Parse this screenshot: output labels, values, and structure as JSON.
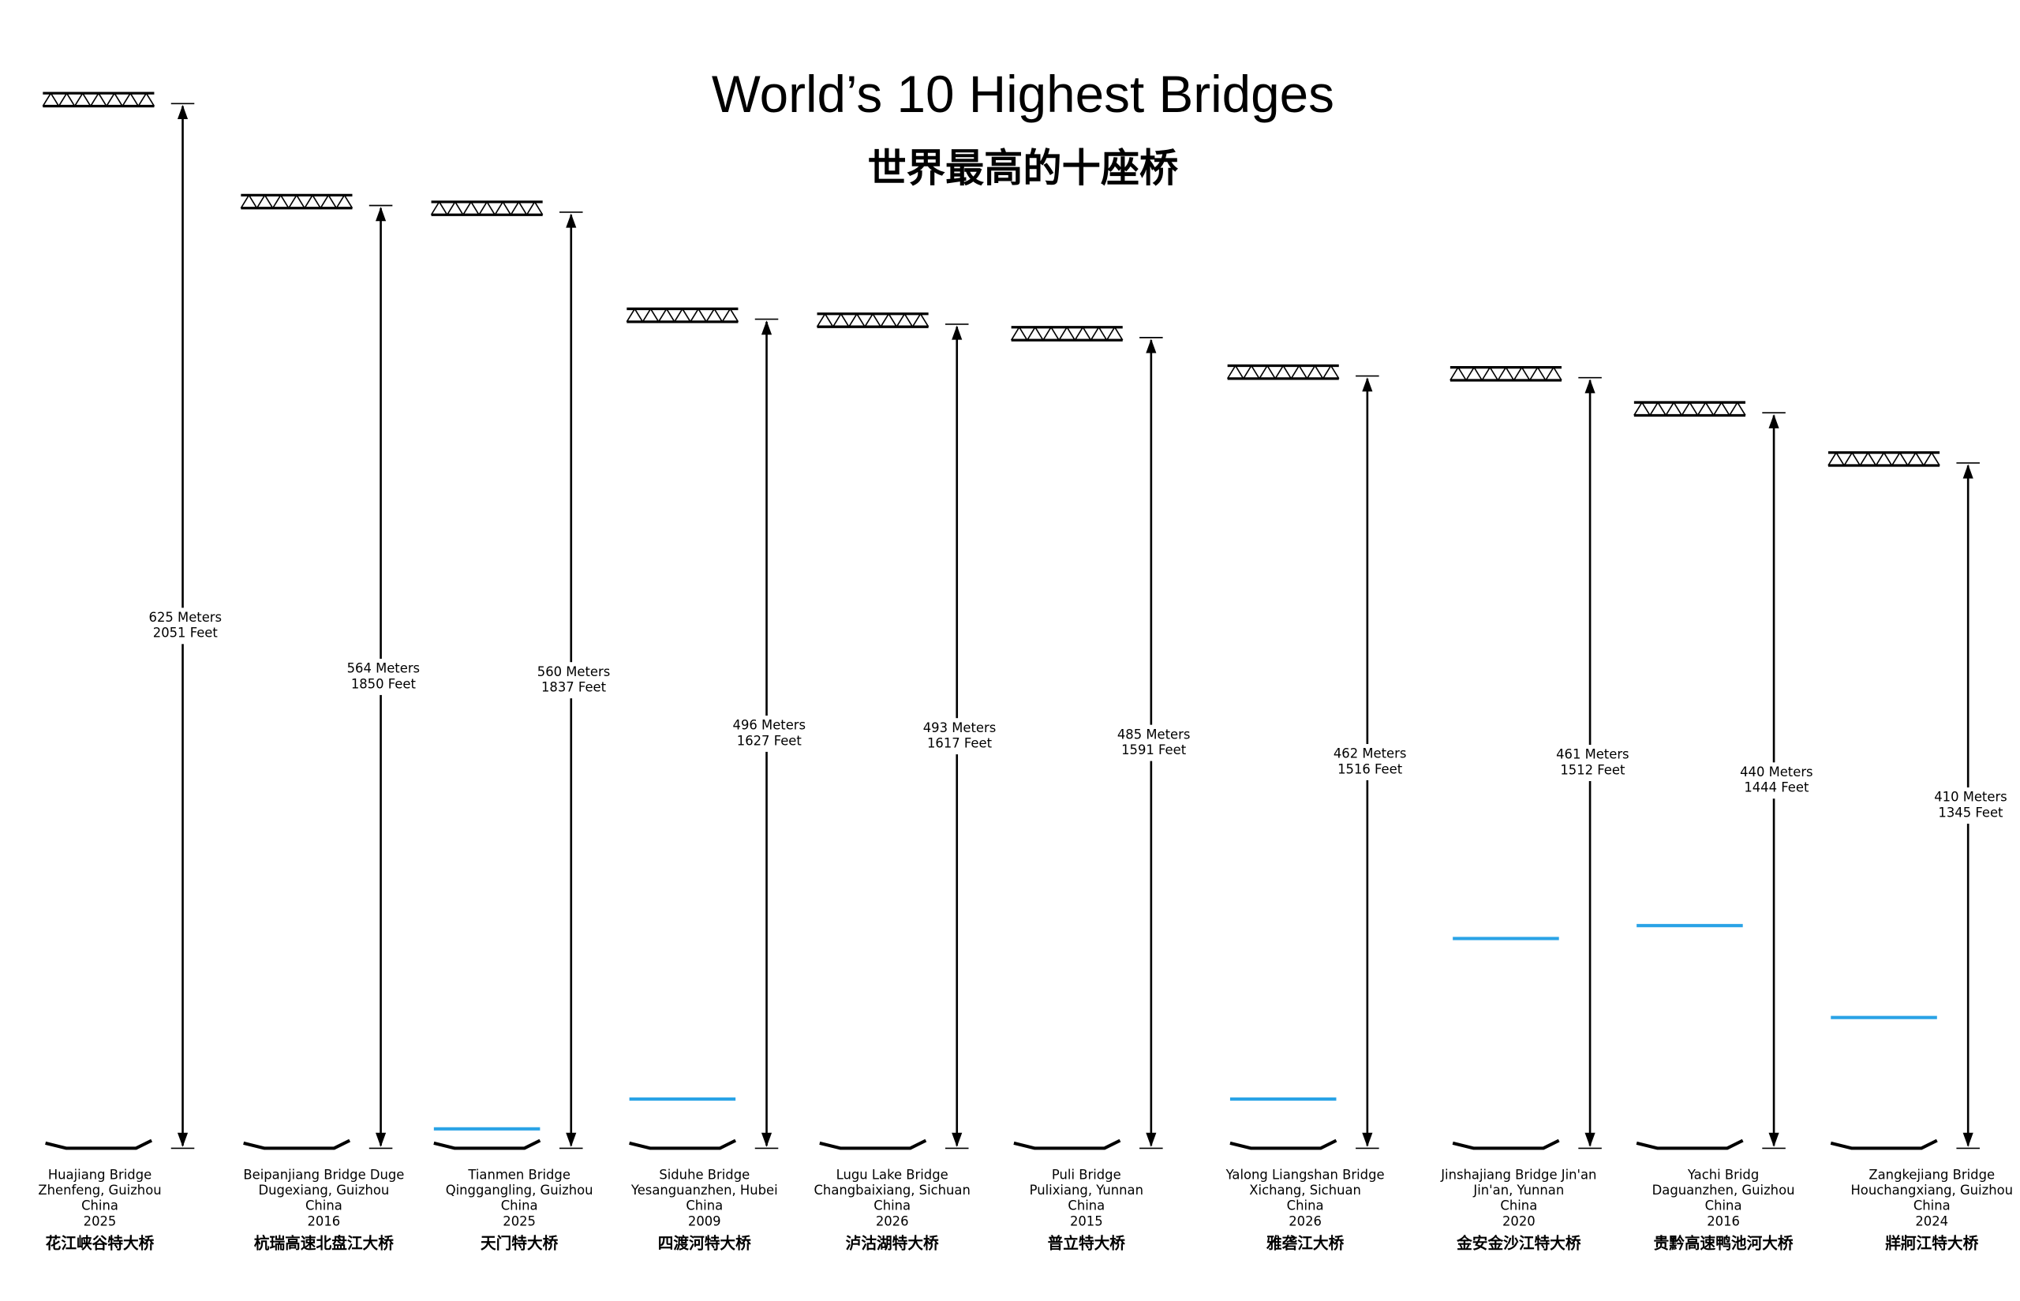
{
  "chart_data": {
    "type": "bar",
    "title": "World’s 10 Highest Bridges",
    "subtitle": "世界最高的十座桥",
    "categories": [
      "Huajiang Bridge",
      "Beipanjiang Bridge Duge",
      "Tianmen Bridge",
      "Siduhe Bridge",
      "Lugu Lake Bridge",
      "Puli Bridge",
      "Yalong Liangshan Bridge",
      "Jinshajiang Bridge Jin'an",
      "Yachi Bridg",
      "Zangkejiang Bridge"
    ],
    "locations": [
      "Zhenfeng, Guizhou",
      "Dugexiang, Guizhou",
      "Qinggangling, Guizhou",
      "Yesanguanzhen, Hubei",
      "Changbaixiang, Sichuan",
      "Pulixiang, Yunnan",
      "Xichang, Sichuan",
      "Jin'an, Yunnan",
      "Daguanzhen, Guizhou",
      "Houchangxiang, Guizhou"
    ],
    "countries": [
      "China",
      "China",
      "China",
      "China",
      "China",
      "China",
      "China",
      "China",
      "China",
      "China"
    ],
    "years": [
      "2025",
      "2016",
      "2025",
      "2009",
      "2026",
      "2015",
      "2026",
      "2020",
      "2016",
      "2024"
    ],
    "chinese_names": [
      "花江峡谷特大桥",
      "杭瑞高速北盘江大桥",
      "天门特大桥",
      "四渡河特大桥",
      "泸沽湖特大桥",
      "普立特大桥",
      "雅砻江大桥",
      "金安金沙江特大桥",
      "贵黔高速鸭池河大桥",
      "牂牁江特大桥"
    ],
    "values": [
      625,
      564,
      560,
      496,
      493,
      485,
      462,
      461,
      440,
      410
    ],
    "value_labels": [
      "625 Meters",
      "564 Meters",
      "560 Meters",
      "496 Meters",
      "493 Meters",
      "485 Meters",
      "462 Meters",
      "461 Meters",
      "440 Meters",
      "410 Meters"
    ],
    "feet_values": [
      2051,
      1850,
      1837,
      1627,
      1617,
      1591,
      1516,
      1512,
      1444,
      1345
    ],
    "feet_labels": [
      "2051 Feet",
      "1850 Feet",
      "1837 Feet",
      "1627 Feet",
      "1617 Feet",
      "1591 Feet",
      "1516 Feet",
      "1512 Feet",
      "1444 Feet",
      "1345 Feet"
    ],
    "color": "#000000"
  }
}
